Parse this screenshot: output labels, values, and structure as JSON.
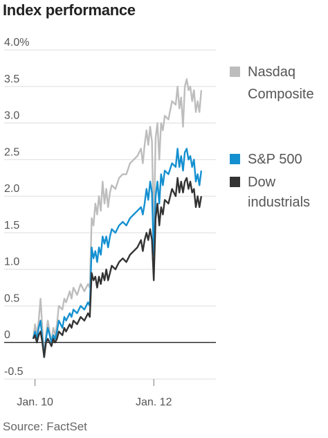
{
  "title": "Index performance",
  "source": "Source: FactSet",
  "chart_data": {
    "type": "line",
    "ylabel": "",
    "xlabel": "",
    "ylim": [
      -0.5,
      4.0
    ],
    "y_ticks": [
      {
        "value": 4.0,
        "label": "4.0%"
      },
      {
        "value": 3.5,
        "label": "3.5"
      },
      {
        "value": 3.0,
        "label": "3.0"
      },
      {
        "value": 2.5,
        "label": "2.5"
      },
      {
        "value": 2.0,
        "label": "2.0"
      },
      {
        "value": 1.5,
        "label": "1.5"
      },
      {
        "value": 1.0,
        "label": "1.0"
      },
      {
        "value": 0.5,
        "label": "0.5"
      },
      {
        "value": 0,
        "label": "0"
      },
      {
        "value": -0.5,
        "label": "-0.5"
      }
    ],
    "x_domain": [
      0,
      100
    ],
    "x_ticks": [
      {
        "value": 1,
        "label": "Jan. 10"
      },
      {
        "value": 66,
        "label": "Jan. 12"
      }
    ],
    "grid": true,
    "legend_placement": "right",
    "series": [
      {
        "name": "Nasdaq Composite",
        "legend_lines": [
          "Nasdaq",
          "Composite"
        ],
        "color": "#bdbdbd",
        "points": [
          [
            0,
            0.05
          ],
          [
            1,
            0.25
          ],
          [
            2,
            0.1
          ],
          [
            3,
            0.3
          ],
          [
            4,
            0.6
          ],
          [
            5,
            0.2
          ],
          [
            6,
            -0.2
          ],
          [
            7,
            0.1
          ],
          [
            8,
            0.3
          ],
          [
            10,
            0.0
          ],
          [
            11,
            0.2
          ],
          [
            12,
            0.1
          ],
          [
            13,
            0.25
          ],
          [
            14,
            0.5
          ],
          [
            16,
            0.45
          ],
          [
            17,
            0.6
          ],
          [
            18,
            0.55
          ],
          [
            20,
            0.7
          ],
          [
            21,
            0.6
          ],
          [
            22,
            0.75
          ],
          [
            24,
            0.65
          ],
          [
            26,
            0.8
          ],
          [
            28,
            0.7
          ],
          [
            30,
            0.8
          ],
          [
            31,
            0.75
          ],
          [
            32,
            1.7
          ],
          [
            33,
            1.6
          ],
          [
            34,
            1.9
          ],
          [
            35,
            1.75
          ],
          [
            36,
            2.0
          ],
          [
            37,
            1.8
          ],
          [
            38,
            2.2
          ],
          [
            39,
            1.9
          ],
          [
            40,
            2.1
          ],
          [
            41,
            1.85
          ],
          [
            42,
            2.05
          ],
          [
            43,
            2.15
          ],
          [
            45,
            2.1
          ],
          [
            47,
            2.25
          ],
          [
            49,
            2.3
          ],
          [
            51,
            2.3
          ],
          [
            53,
            2.45
          ],
          [
            55,
            2.5
          ],
          [
            57,
            2.55
          ],
          [
            59,
            2.65
          ],
          [
            60,
            2.45
          ],
          [
            61,
            2.7
          ],
          [
            62,
            2.9
          ],
          [
            63,
            2.7
          ],
          [
            64,
            2.95
          ],
          [
            65,
            2.75
          ],
          [
            66,
            1.5
          ],
          [
            67,
            2.8
          ],
          [
            68,
            3.0
          ],
          [
            69,
            2.5
          ],
          [
            70,
            3.0
          ],
          [
            71,
            2.9
          ],
          [
            72,
            3.1
          ],
          [
            74,
            3.05
          ],
          [
            76,
            3.3
          ],
          [
            78,
            3.25
          ],
          [
            79,
            3.5
          ],
          [
            80,
            3.2
          ],
          [
            81,
            3.35
          ],
          [
            82,
            2.95
          ],
          [
            83,
            3.5
          ],
          [
            84,
            3.6
          ],
          [
            85,
            3.45
          ],
          [
            86,
            3.5
          ],
          [
            87,
            3.3
          ],
          [
            88,
            3.45
          ],
          [
            89,
            3.15
          ],
          [
            90,
            3.3
          ],
          [
            91,
            3.15
          ],
          [
            92,
            3.45
          ]
        ]
      },
      {
        "name": "S&P 500",
        "legend_lines": [
          "S&P 500"
        ],
        "color": "#1490d0",
        "points": [
          [
            0,
            0.05
          ],
          [
            1,
            0.15
          ],
          [
            2,
            0.05
          ],
          [
            3,
            0.2
          ],
          [
            4,
            0.3
          ],
          [
            5,
            0.05
          ],
          [
            6,
            -0.2
          ],
          [
            7,
            0.05
          ],
          [
            8,
            0.2
          ],
          [
            10,
            0.0
          ],
          [
            11,
            0.1
          ],
          [
            12,
            0.05
          ],
          [
            13,
            0.15
          ],
          [
            14,
            0.3
          ],
          [
            16,
            0.2
          ],
          [
            17,
            0.35
          ],
          [
            18,
            0.3
          ],
          [
            20,
            0.4
          ],
          [
            21,
            0.35
          ],
          [
            22,
            0.45
          ],
          [
            24,
            0.4
          ],
          [
            26,
            0.5
          ],
          [
            28,
            0.45
          ],
          [
            30,
            0.55
          ],
          [
            31,
            0.5
          ],
          [
            32,
            1.3
          ],
          [
            33,
            1.15
          ],
          [
            34,
            1.25
          ],
          [
            35,
            1.1
          ],
          [
            36,
            1.3
          ],
          [
            37,
            1.2
          ],
          [
            38,
            1.45
          ],
          [
            39,
            1.35
          ],
          [
            40,
            1.45
          ],
          [
            41,
            1.3
          ],
          [
            42,
            1.45
          ],
          [
            43,
            1.55
          ],
          [
            45,
            1.5
          ],
          [
            47,
            1.6
          ],
          [
            49,
            1.65
          ],
          [
            51,
            1.6
          ],
          [
            53,
            1.7
          ],
          [
            55,
            1.75
          ],
          [
            57,
            1.8
          ],
          [
            59,
            1.85
          ],
          [
            60,
            1.75
          ],
          [
            61,
            1.9
          ],
          [
            62,
            2.1
          ],
          [
            63,
            1.95
          ],
          [
            64,
            2.2
          ],
          [
            65,
            2.05
          ],
          [
            66,
            1.2
          ],
          [
            67,
            2.0
          ],
          [
            68,
            2.2
          ],
          [
            69,
            1.9
          ],
          [
            70,
            2.3
          ],
          [
            71,
            2.15
          ],
          [
            72,
            2.35
          ],
          [
            74,
            2.3
          ],
          [
            76,
            2.45
          ],
          [
            78,
            2.4
          ],
          [
            79,
            2.65
          ],
          [
            80,
            2.4
          ],
          [
            81,
            2.55
          ],
          [
            82,
            2.35
          ],
          [
            83,
            2.6
          ],
          [
            84,
            2.65
          ],
          [
            85,
            2.5
          ],
          [
            86,
            2.55
          ],
          [
            87,
            2.4
          ],
          [
            88,
            2.5
          ],
          [
            89,
            2.2
          ],
          [
            90,
            2.3
          ],
          [
            91,
            2.15
          ],
          [
            92,
            2.35
          ]
        ]
      },
      {
        "name": "Dow industrials",
        "legend_lines": [
          "Dow",
          "industrials"
        ],
        "color": "#333333",
        "points": [
          [
            0,
            0.05
          ],
          [
            1,
            0.1
          ],
          [
            2,
            0.0
          ],
          [
            3,
            0.1
          ],
          [
            4,
            0.15
          ],
          [
            5,
            0.0
          ],
          [
            6,
            -0.2
          ],
          [
            7,
            0.0
          ],
          [
            8,
            0.05
          ],
          [
            10,
            -0.05
          ],
          [
            11,
            0.05
          ],
          [
            12,
            0.0
          ],
          [
            13,
            0.05
          ],
          [
            14,
            0.15
          ],
          [
            16,
            0.1
          ],
          [
            17,
            0.2
          ],
          [
            18,
            0.15
          ],
          [
            20,
            0.25
          ],
          [
            21,
            0.2
          ],
          [
            22,
            0.3
          ],
          [
            24,
            0.25
          ],
          [
            26,
            0.35
          ],
          [
            28,
            0.3
          ],
          [
            30,
            0.4
          ],
          [
            31,
            0.35
          ],
          [
            32,
            0.95
          ],
          [
            33,
            0.85
          ],
          [
            34,
            0.9
          ],
          [
            35,
            0.75
          ],
          [
            36,
            0.9
          ],
          [
            37,
            0.8
          ],
          [
            38,
            0.95
          ],
          [
            39,
            0.85
          ],
          [
            40,
            1.0
          ],
          [
            41,
            0.85
          ],
          [
            42,
            0.95
          ],
          [
            43,
            1.05
          ],
          [
            45,
            1.0
          ],
          [
            47,
            1.1
          ],
          [
            49,
            1.15
          ],
          [
            51,
            1.1
          ],
          [
            53,
            1.2
          ],
          [
            55,
            1.25
          ],
          [
            57,
            1.3
          ],
          [
            59,
            1.4
          ],
          [
            60,
            1.25
          ],
          [
            61,
            1.4
          ],
          [
            62,
            1.5
          ],
          [
            63,
            1.4
          ],
          [
            64,
            1.55
          ],
          [
            65,
            1.4
          ],
          [
            66,
            0.85
          ],
          [
            67,
            1.7
          ],
          [
            68,
            1.9
          ],
          [
            69,
            1.6
          ],
          [
            70,
            1.85
          ],
          [
            71,
            1.75
          ],
          [
            72,
            1.95
          ],
          [
            74,
            1.9
          ],
          [
            76,
            2.1
          ],
          [
            78,
            2.0
          ],
          [
            79,
            2.25
          ],
          [
            80,
            2.05
          ],
          [
            81,
            2.2
          ],
          [
            82,
            2.05
          ],
          [
            83,
            2.2
          ],
          [
            84,
            2.25
          ],
          [
            85,
            2.1
          ],
          [
            86,
            2.2
          ],
          [
            87,
            2.05
          ],
          [
            88,
            2.1
          ],
          [
            89,
            1.85
          ],
          [
            90,
            2.0
          ],
          [
            91,
            1.85
          ],
          [
            92,
            2.0
          ]
        ]
      }
    ]
  }
}
